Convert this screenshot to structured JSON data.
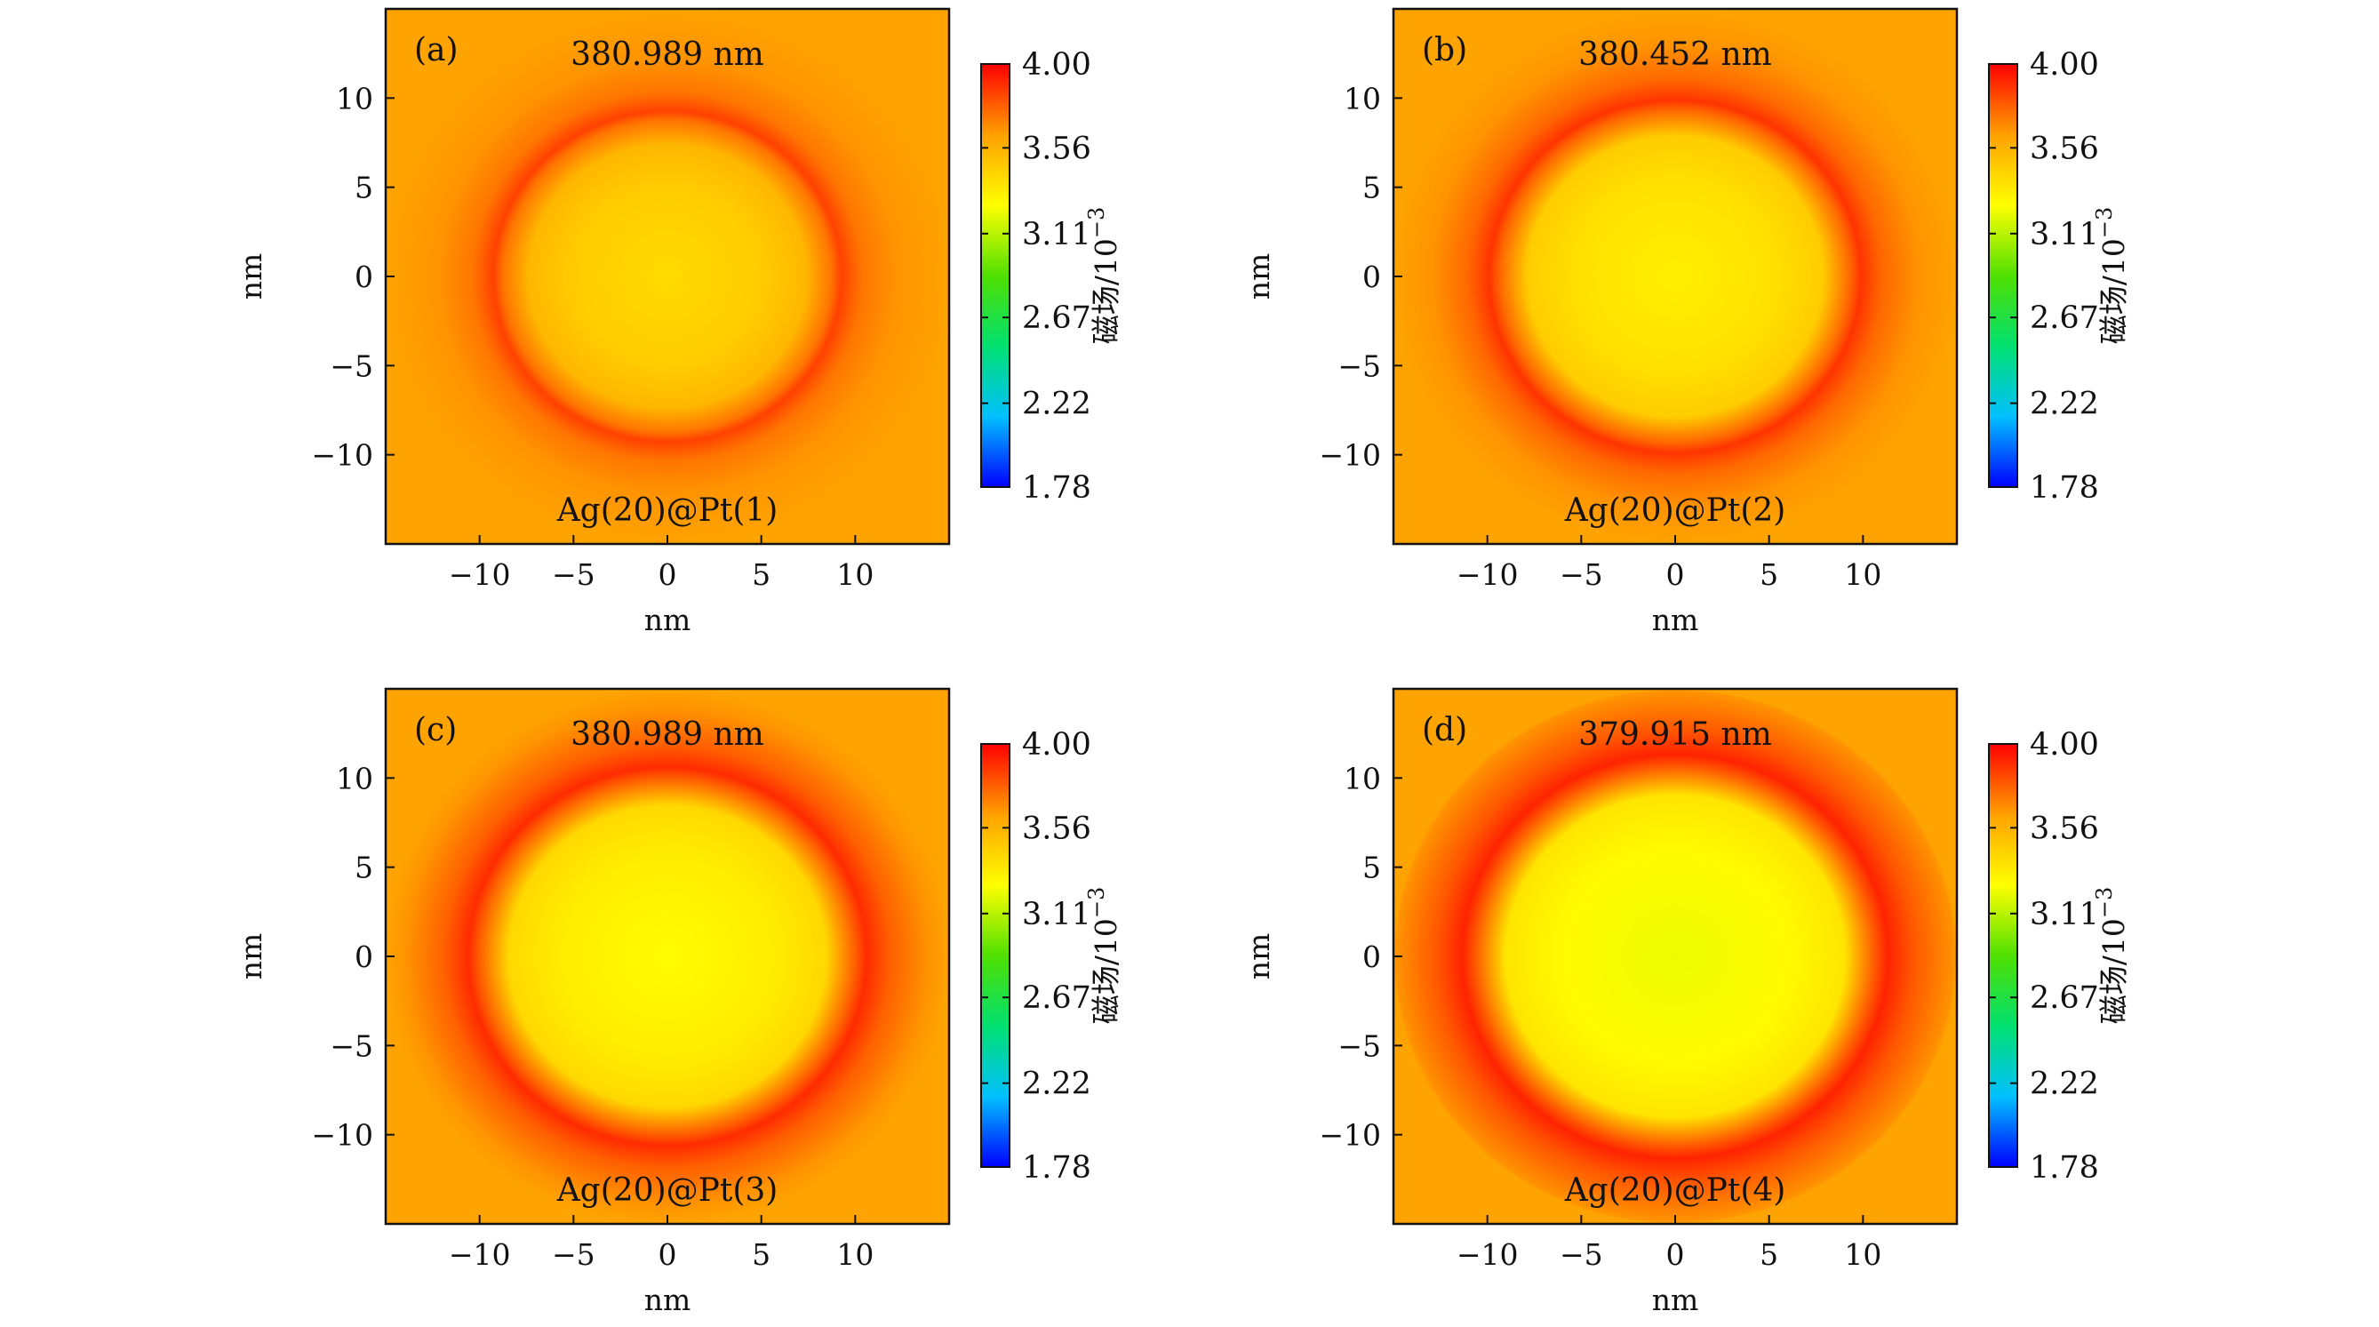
{
  "chart_data": [
    {
      "type": "heatmap",
      "panel_label": "(a)",
      "wavelength": "380.989 nm",
      "structure": "Ag(20)@Pt(1)",
      "xlabel": "nm",
      "ylabel": "nm",
      "xlim": [
        -15,
        15
      ],
      "ylim": [
        -15,
        15
      ],
      "xticks": [
        -10,
        -5,
        0,
        5,
        10
      ],
      "yticks": [
        -10,
        -5,
        0,
        5,
        10
      ],
      "xtick_labels": [
        "−10",
        "−5",
        "0",
        "5",
        "10"
      ],
      "ytick_labels": [
        "10",
        "5",
        "0",
        "−5",
        "−10"
      ],
      "colorbar": {
        "label": "磁场/10",
        "label_exponent": "−3",
        "min": 1.78,
        "max": 4.0,
        "tick_labels": [
          "4.00",
          "3.56",
          "3.11",
          "2.67",
          "2.22",
          "1.78"
        ]
      },
      "field": {
        "core_radius_nm": 9.0,
        "center_value": 3.4,
        "ring_peak_value": 3.85,
        "background_value": 3.62
      }
    },
    {
      "type": "heatmap",
      "panel_label": "(b)",
      "wavelength": "380.452 nm",
      "structure": "Ag(20)@Pt(2)",
      "xlabel": "nm",
      "ylabel": "nm",
      "xlim": [
        -15,
        15
      ],
      "ylim": [
        -15,
        15
      ],
      "xticks": [
        -10,
        -5,
        0,
        5,
        10
      ],
      "yticks": [
        -10,
        -5,
        0,
        5,
        10
      ],
      "xtick_labels": [
        "−10",
        "−5",
        "0",
        "5",
        "10"
      ],
      "ytick_labels": [
        "10",
        "5",
        "0",
        "−5",
        "−10"
      ],
      "colorbar": {
        "label": "磁场/10",
        "label_exponent": "−3",
        "min": 1.78,
        "max": 4.0,
        "tick_labels": [
          "4.00",
          "3.56",
          "3.11",
          "2.67",
          "2.22",
          "1.78"
        ]
      },
      "field": {
        "core_radius_nm": 9.6,
        "center_value": 3.32,
        "ring_peak_value": 3.88,
        "background_value": 3.62
      }
    },
    {
      "type": "heatmap",
      "panel_label": "(c)",
      "wavelength": "380.989 nm",
      "structure": "Ag(20)@Pt(3)",
      "xlabel": "nm",
      "ylabel": "nm",
      "xlim": [
        -15,
        15
      ],
      "ylim": [
        -15,
        15
      ],
      "xticks": [
        -10,
        -5,
        0,
        5,
        10
      ],
      "yticks": [
        -10,
        -5,
        0,
        5,
        10
      ],
      "xtick_labels": [
        "−10",
        "−5",
        "0",
        "5",
        "10"
      ],
      "ytick_labels": [
        "10",
        "5",
        "0",
        "−5",
        "−10"
      ],
      "colorbar": {
        "label": "磁场/10",
        "label_exponent": "−3",
        "min": 1.78,
        "max": 4.0,
        "tick_labels": [
          "4.00",
          "3.56",
          "3.11",
          "2.67",
          "2.22",
          "1.78"
        ]
      },
      "field": {
        "core_radius_nm": 10.3,
        "center_value": 3.27,
        "ring_peak_value": 3.9,
        "background_value": 3.62
      }
    },
    {
      "type": "heatmap",
      "panel_label": "(d)",
      "wavelength": "379.915 nm",
      "structure": "Ag(20)@Pt(4)",
      "xlabel": "nm",
      "ylabel": "nm",
      "xlim": [
        -15,
        15
      ],
      "ylim": [
        -15,
        15
      ],
      "xticks": [
        -10,
        -5,
        0,
        5,
        10
      ],
      "yticks": [
        -10,
        -5,
        0,
        5,
        10
      ],
      "xtick_labels": [
        "−10",
        "−5",
        "0",
        "5",
        "10"
      ],
      "ytick_labels": [
        "10",
        "5",
        "0",
        "−5",
        "−10"
      ],
      "colorbar": {
        "label": "磁场/10",
        "label_exponent": "−3",
        "min": 1.78,
        "max": 4.0,
        "tick_labels": [
          "4.00",
          "3.56",
          "3.11",
          "2.67",
          "2.22",
          "1.78"
        ]
      },
      "field": {
        "core_radius_nm": 11.0,
        "center_value": 3.22,
        "ring_peak_value": 3.92,
        "background_value": 3.62
      }
    }
  ],
  "colormap_stops": [
    "#0000ff",
    "#00c0ff",
    "#00e070",
    "#50e000",
    "#ffff00",
    "#ffa000",
    "#ff0000"
  ]
}
